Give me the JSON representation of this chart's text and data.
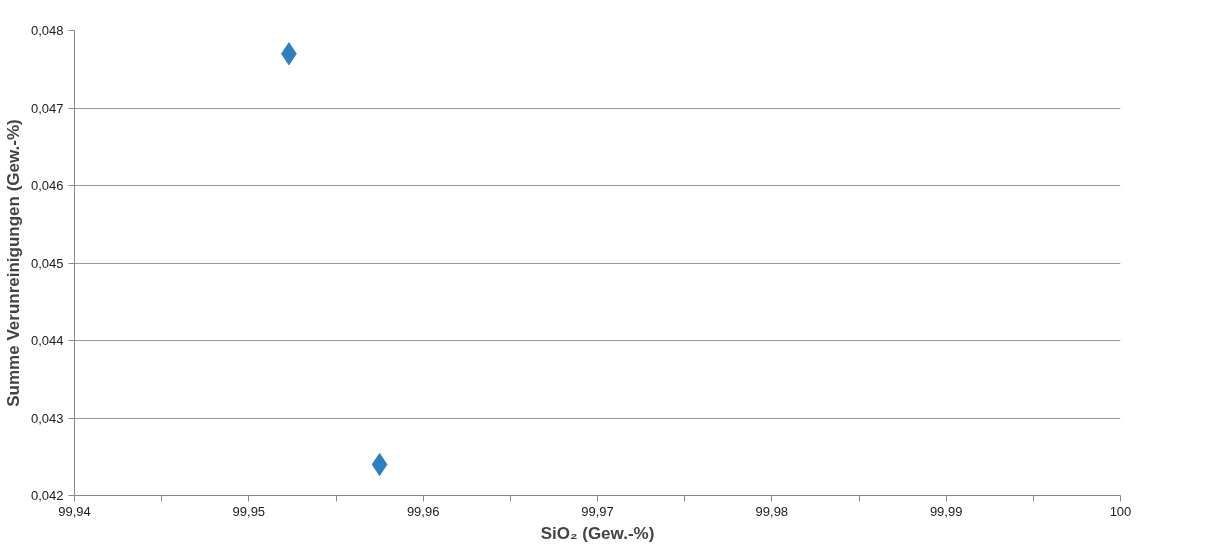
{
  "chart_data": {
    "type": "scatter",
    "xlabel": "SiO₂ (Gew.-%)",
    "ylabel": "Summe Verunreinigungen (Gew.-%)",
    "x": [
      99.9523,
      99.9575
    ],
    "series": [
      {
        "color": "#2f7ebf",
        "values": [
          0.0477,
          0.0424
        ]
      }
    ],
    "marker": "diamond",
    "grid": "y",
    "xlim": [
      99.94,
      100
    ],
    "ylim": [
      0.042,
      0.048
    ],
    "xticks": [
      {
        "value": 99.94,
        "label": "99,94"
      },
      {
        "value": 99.945,
        "label": null
      },
      {
        "value": 99.95,
        "label": "99,95"
      },
      {
        "value": 99.955,
        "label": null
      },
      {
        "value": 99.96,
        "label": "99,96"
      },
      {
        "value": 99.965,
        "label": null
      },
      {
        "value": 99.97,
        "label": "99,97"
      },
      {
        "value": 99.975,
        "label": null
      },
      {
        "value": 99.98,
        "label": "99,98"
      },
      {
        "value": 99.985,
        "label": null
      },
      {
        "value": 99.99,
        "label": "99,99"
      },
      {
        "value": 99.995,
        "label": null
      },
      {
        "value": 100,
        "label": "100"
      }
    ],
    "yticks": [
      {
        "value": 0.042,
        "label": "0,042"
      },
      {
        "value": 0.043,
        "label": "0,043"
      },
      {
        "value": 0.044,
        "label": "0,044"
      },
      {
        "value": 0.045,
        "label": "0,045"
      },
      {
        "value": 0.046,
        "label": "0,046"
      },
      {
        "value": 0.047,
        "label": "0,047"
      },
      {
        "value": 0.048,
        "label": "0,048"
      }
    ]
  }
}
